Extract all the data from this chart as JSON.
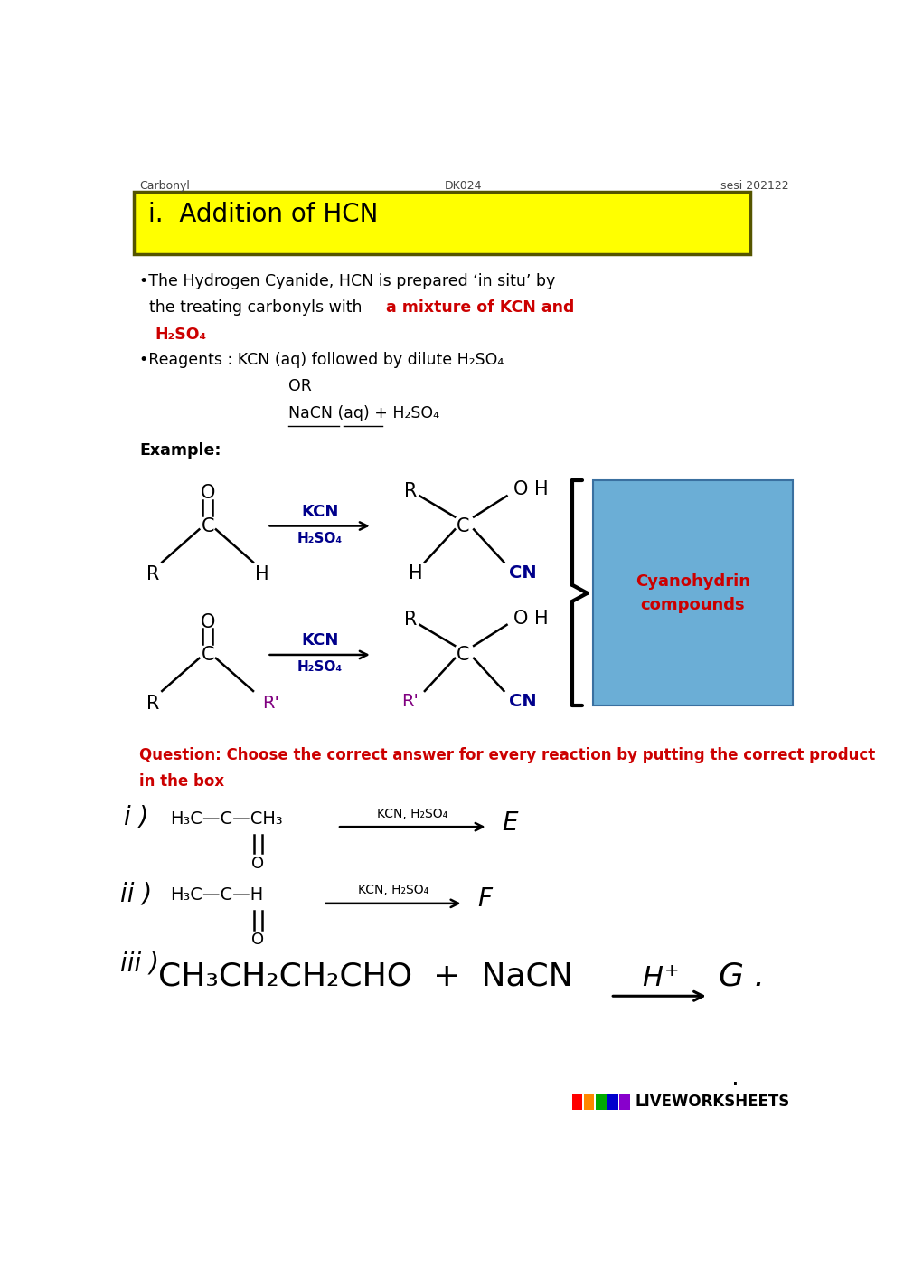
{
  "page_width": 10.0,
  "page_height": 14.13,
  "bg_color": "#ffffff",
  "header_left": "Carbonyl",
  "header_center": "DK024",
  "header_right": "sesi 202122",
  "title_box_text": "i.  Addition of HCN",
  "title_box_bg": "#ffff00",
  "title_box_border": "#555500",
  "cyanohydrin_box_text": "Cyanohydrin\ncompounds",
  "cyanohydrin_box_bg": "#6baed6",
  "cyanohydrin_text_color": "#cc0000",
  "question_color": "#cc0000",
  "footer_text": "LIVEWORKSHEETS",
  "kcn_color": "#00008b",
  "r_prime_color": "#800080",
  "black": "#000000",
  "red": "#cc0000",
  "sq_colors": [
    "#ff0000",
    "#ff8800",
    "#00aa00",
    "#0000cc",
    "#8800cc"
  ]
}
